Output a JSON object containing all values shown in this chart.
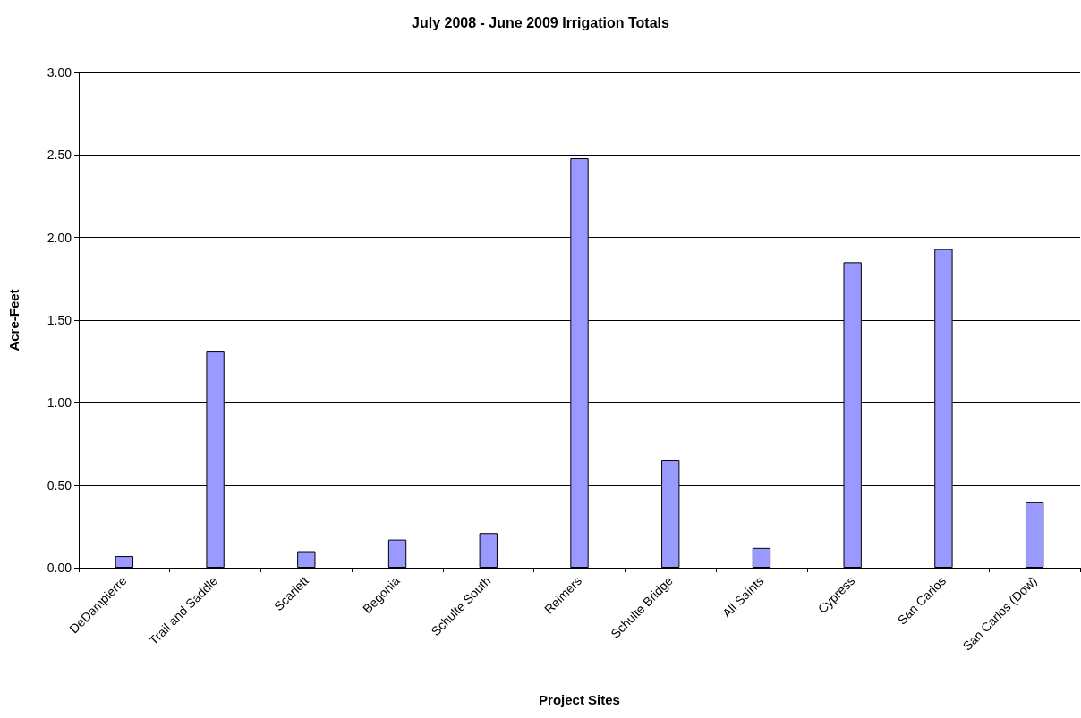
{
  "chart_data": {
    "type": "bar",
    "title": "July 2008 - June 2009 Irrigation Totals",
    "xlabel": "Project Sites",
    "ylabel": "Acre-Feet",
    "categories": [
      "DeDampierre",
      "Trail and Saddle",
      "Scarlett",
      "Begonia",
      "Schulte South",
      "Reimers",
      "Schulte Bridge",
      "All Saints",
      "Cypress",
      "San Carlos",
      "San Carlos (Dow)"
    ],
    "values": [
      0.07,
      1.31,
      0.1,
      0.17,
      0.21,
      2.48,
      0.65,
      0.12,
      1.85,
      1.93,
      0.4
    ],
    "color": "#9999ff",
    "ylim": [
      0,
      3
    ],
    "yticks": [
      {
        "value": 0,
        "label": "0.00"
      },
      {
        "value": 0.5,
        "label": "0.50"
      },
      {
        "value": 1,
        "label": "1.00"
      },
      {
        "value": 1.5,
        "label": "1.50"
      },
      {
        "value": 2,
        "label": "2.00"
      },
      {
        "value": 2.5,
        "label": "2.50"
      },
      {
        "value": 3,
        "label": "3.00"
      }
    ],
    "grid": "y"
  }
}
